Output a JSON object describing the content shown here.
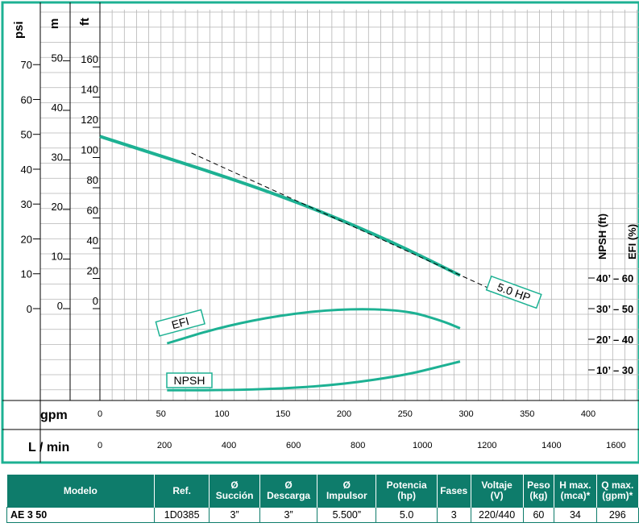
{
  "chart_data": {
    "type": "line",
    "title": "",
    "left_axes": {
      "psi": {
        "label": "psi",
        "ticks": [
          0,
          10,
          20,
          30,
          40,
          50,
          60,
          70
        ]
      },
      "m": {
        "label": "m",
        "ticks": [
          0,
          10,
          20,
          30,
          40,
          50
        ]
      },
      "ft": {
        "label": "ft",
        "ticks": [
          0,
          20,
          40,
          60,
          80,
          100,
          120,
          140,
          160
        ]
      }
    },
    "right_axes": {
      "npsh_label": "NPSH (ft)",
      "efi_label": "EFI (%)",
      "ticks": [
        "40’ – 60",
        "30’ – 50",
        "20’ – 40",
        "10’ – 30"
      ]
    },
    "x_axis_gpm": {
      "label": "gpm",
      "ticks": [
        0,
        50,
        100,
        150,
        200,
        250,
        300,
        350,
        400
      ],
      "range": [
        0,
        400
      ]
    },
    "x_axis_lmin": {
      "label": "L / min",
      "ticks": [
        0,
        200,
        400,
        600,
        800,
        1000,
        1200,
        1400,
        1600
      ]
    },
    "y_range_ft": [
      0,
      185
    ],
    "series": [
      {
        "name": "5.0 HP",
        "kind": "head_ft",
        "x": [
          0,
          50,
          100,
          150,
          200,
          250,
          295
        ],
        "y": [
          114,
          101,
          88,
          74,
          58,
          40,
          22
        ]
      },
      {
        "name": "",
        "kind": "reference_dashed",
        "x": [
          75,
          320
        ],
        "y": [
          103,
          13
        ]
      },
      {
        "name": "EFI",
        "kind": "efficiency",
        "x": [
          55,
          100,
          150,
          200,
          250,
          280,
          295
        ],
        "y": [
          -23,
          -12,
          -4,
          0,
          -1,
          -8,
          -13
        ]
      },
      {
        "name": "NPSH",
        "kind": "npsh",
        "x": [
          55,
          100,
          150,
          200,
          250,
          280,
          295
        ],
        "y": [
          -54,
          -54,
          -53,
          -50,
          -44,
          -38,
          -35
        ]
      }
    ],
    "grid": true,
    "curve_color": "#1db193"
  },
  "table": {
    "headers": [
      [
        "Modelo"
      ],
      [
        "Ref."
      ],
      [
        "Ø",
        "Succión"
      ],
      [
        "Ø",
        "Descarga"
      ],
      [
        "Ø",
        "Impulsor"
      ],
      [
        "Potencia",
        "(hp)"
      ],
      [
        "Fases"
      ],
      [
        "Voltaje",
        "(V)"
      ],
      [
        "Peso",
        "(kg)"
      ],
      [
        "H max.",
        "(mca)*"
      ],
      [
        "Q max.",
        "(gpm)*"
      ]
    ],
    "rows": [
      [
        "AE 3 50",
        "1D0385",
        "3”",
        "3”",
        "5.500”",
        "5.0",
        "3",
        "220/440",
        "60",
        "34",
        "296"
      ]
    ],
    "header_color": "#0e7c6b"
  }
}
